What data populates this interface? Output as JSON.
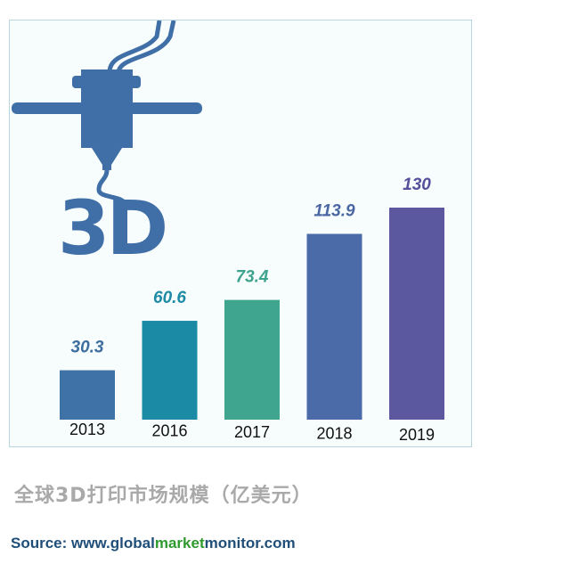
{
  "chart_data": {
    "type": "bar",
    "categories": [
      "2013",
      "2016",
      "2017",
      "2018",
      "2019"
    ],
    "values": [
      30.3,
      60.6,
      73.4,
      113.9,
      130
    ],
    "value_labels": [
      "30.3",
      "60.6",
      "73.4",
      "113.9",
      "130"
    ],
    "bar_colors": [
      "#3f73a8",
      "#1a8aa5",
      "#3fa58f",
      "#4a6ba8",
      "#5b58a0"
    ],
    "label_colors": [
      "#3d6d9e",
      "#1f8aa5",
      "#3ea38e",
      "#4a67a3",
      "#55509b"
    ],
    "ylim": [
      0,
      140
    ],
    "grid": false,
    "legend": "none",
    "title": "全球3D打印市场规模（亿美元）",
    "xlabel": "",
    "ylabel": ""
  },
  "logo": {
    "text": "3D",
    "icon": "3d-printer-nozzle-icon",
    "color": "#3f6fa6"
  },
  "source": {
    "prefix": "Source: www.",
    "part1": "global",
    "part2": "market",
    "part3": "monitor",
    "suffix": ".com",
    "color": "#1f4e79",
    "highlight_color": "#2e9a2e"
  }
}
